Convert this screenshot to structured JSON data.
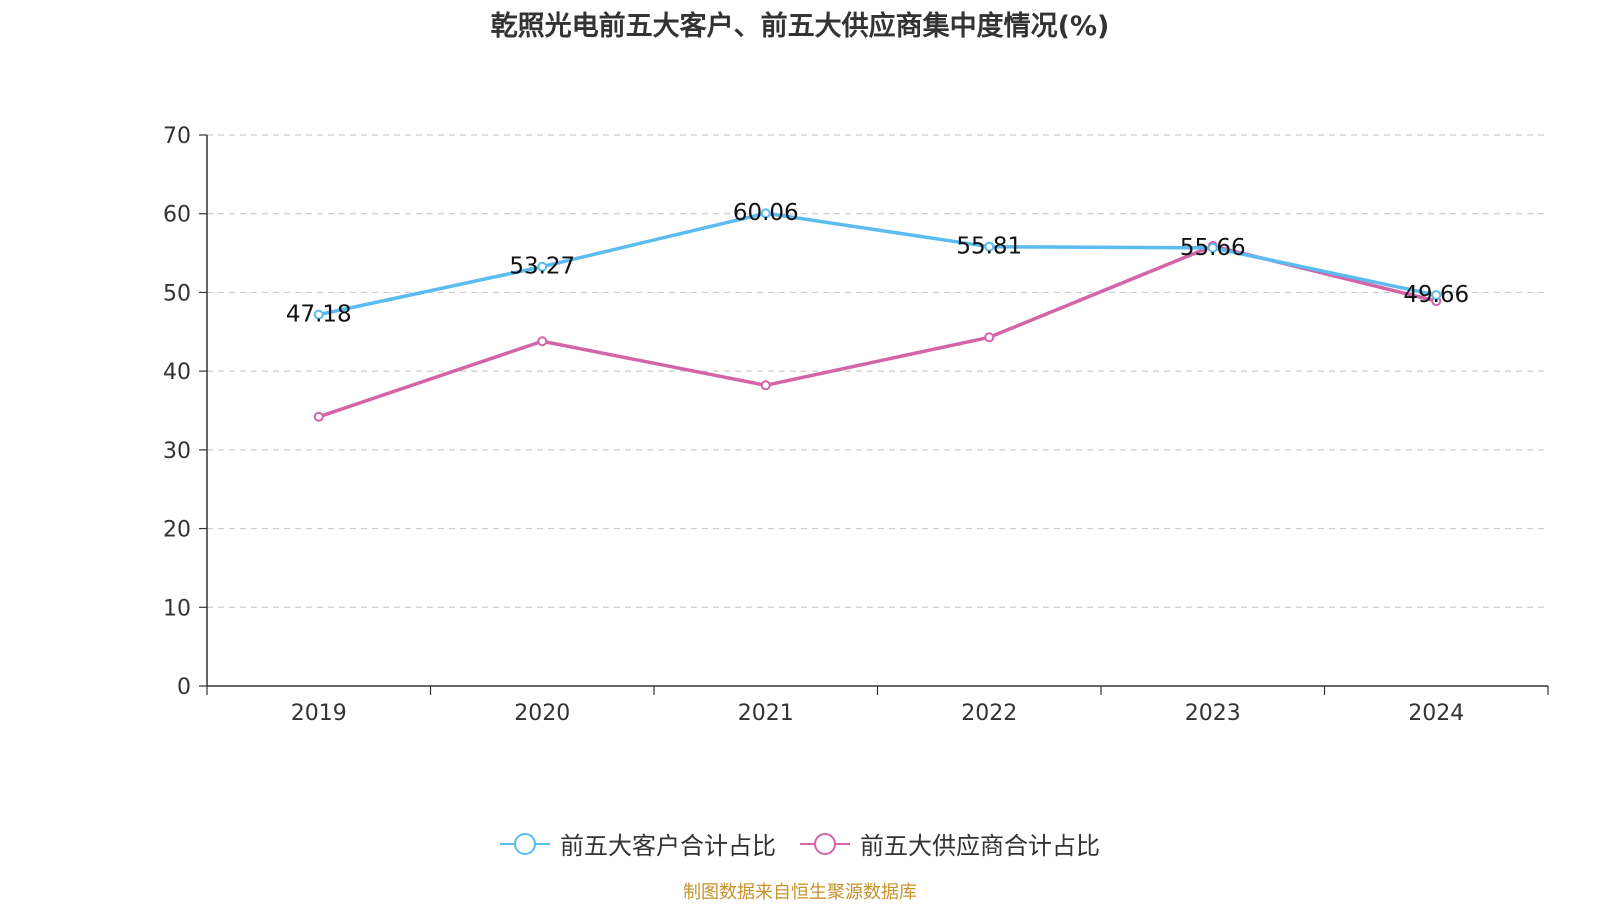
{
  "title": "乾照光电前五大客户、前五大供应商集中度情况(%)",
  "source": "制图数据来自恒生聚源数据库",
  "chart_data": {
    "type": "line",
    "categories": [
      "2019",
      "2020",
      "2021",
      "2022",
      "2023",
      "2024"
    ],
    "ylim": [
      0,
      70
    ],
    "yticks": [
      0,
      10,
      20,
      30,
      40,
      50,
      60,
      70
    ],
    "grid": true,
    "legend_position": "bottom",
    "series": [
      {
        "name": "前五大客户合计占比",
        "color": "#5bbcf0",
        "values": [
          47.18,
          53.27,
          60.06,
          55.81,
          55.66,
          49.66
        ],
        "labels": [
          "47.18",
          "53.27",
          "60.06",
          "55.81",
          "55.66",
          "49.66"
        ],
        "show_labels": true
      },
      {
        "name": "前五大供应商合计占比",
        "color": "#d464a8",
        "values": [
          34.2,
          43.8,
          38.2,
          44.3,
          55.9,
          48.9
        ],
        "show_labels": false
      }
    ]
  }
}
